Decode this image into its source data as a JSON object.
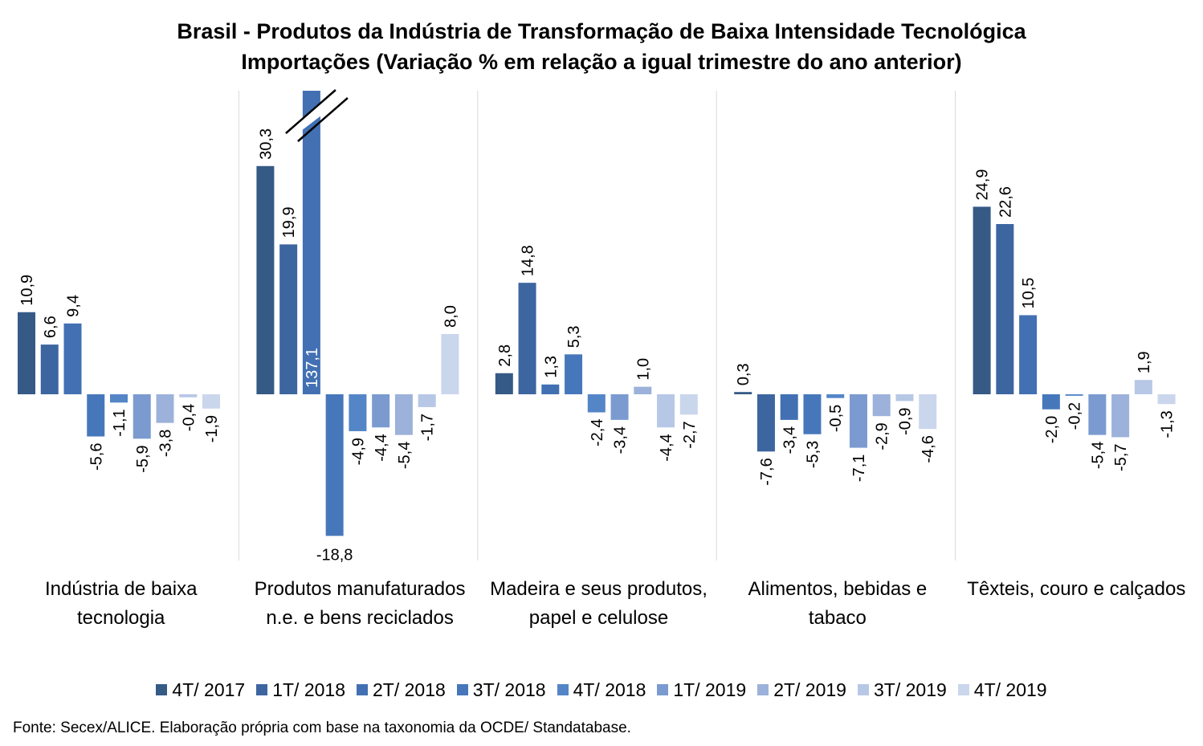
{
  "title_line1": "Brasil - Produtos da Indústria de Transformação de Baixa Intensidade Tecnológica",
  "title_line2": "Importações (Variação % em relação a igual trimestre do ano anterior)",
  "source": "Fonte: Secex/ALICE. Elaboração própria com base na taxonomia da OCDE/ Standatabase.",
  "chart_data": {
    "type": "bar",
    "title": "Brasil - Produtos da Indústria de Transformação de Baixa Intensidade Tecnológica Importações (Variação % em relação a igual trimestre do ano anterior)",
    "categories": [
      "Indústria de baixa tecnologia",
      "Produtos manufaturados n.e. e bens reciclados",
      "Madeira e seus produtos, papel e celulose",
      "Alimentos, bebidas e tabaco",
      "Têxteis, couro e calçados"
    ],
    "series": [
      {
        "name": "4T/ 2017",
        "color": "#355a86",
        "values": [
          10.9,
          30.3,
          2.8,
          0.3,
          24.9
        ],
        "labels": [
          "10,9",
          "30,3",
          "2,8",
          "0,3",
          "24,9"
        ]
      },
      {
        "name": "1T/ 2018",
        "color": "#3d65a0",
        "values": [
          6.6,
          19.9,
          14.8,
          -7.6,
          22.6
        ],
        "labels": [
          "6,6",
          "19,9",
          "14,8",
          "-7,6",
          "22,6"
        ]
      },
      {
        "name": "2T/ 2018",
        "color": "#4270b3",
        "values": [
          9.4,
          137.1,
          1.3,
          -3.4,
          10.5
        ],
        "labels": [
          "9,4",
          "137,1",
          "1,3",
          "-3,4",
          "10,5"
        ]
      },
      {
        "name": "3T/ 2018",
        "color": "#4777bb",
        "values": [
          -5.6,
          -18.8,
          5.3,
          -5.3,
          -2.0
        ],
        "labels": [
          "-5,6",
          "-18,8",
          "5,3",
          "-5,3",
          "-2,0"
        ]
      },
      {
        "name": "4T/ 2018",
        "color": "#5485c7",
        "values": [
          -1.1,
          -4.9,
          -2.4,
          -0.5,
          -0.2
        ],
        "labels": [
          "-1,1",
          "-4,9",
          "-2,4",
          "-0,5",
          "-0,2"
        ]
      },
      {
        "name": "1T/ 2019",
        "color": "#7b9bd0",
        "values": [
          -5.9,
          -4.4,
          -3.4,
          -7.1,
          -5.4
        ],
        "labels": [
          "-5,9",
          "-4,4",
          "-3,4",
          "-7,1",
          "-5,4"
        ]
      },
      {
        "name": "2T/ 2019",
        "color": "#9cb2da",
        "values": [
          -3.8,
          -5.4,
          1.0,
          -2.9,
          -5.7
        ],
        "labels": [
          "-3,8",
          "-5,4",
          "1,0",
          "-2,9",
          "-5,7"
        ]
      },
      {
        "name": "3T/ 2019",
        "color": "#b7c7e6",
        "values": [
          -0.4,
          -1.7,
          -4.4,
          -0.9,
          1.9
        ],
        "labels": [
          "-0,4",
          "-1,7",
          "-4,4",
          "-0,9",
          "1,9"
        ]
      },
      {
        "name": "4T/ 2019",
        "color": "#cad6ec",
        "values": [
          -1.9,
          8.0,
          -2.7,
          -4.6,
          -1.3
        ],
        "labels": [
          "-1,9",
          "8,0",
          "-2,7",
          "-4,6",
          "-1,3"
        ]
      }
    ],
    "axis_break": {
      "category": "Produtos manufaturados n.e. e bens reciclados",
      "series": "2T/ 2018",
      "value": 137.1
    },
    "ylim": [
      -20,
      35
    ],
    "xlabel": "",
    "ylabel": "",
    "legend_position": "bottom",
    "grid": false,
    "separators": true
  }
}
